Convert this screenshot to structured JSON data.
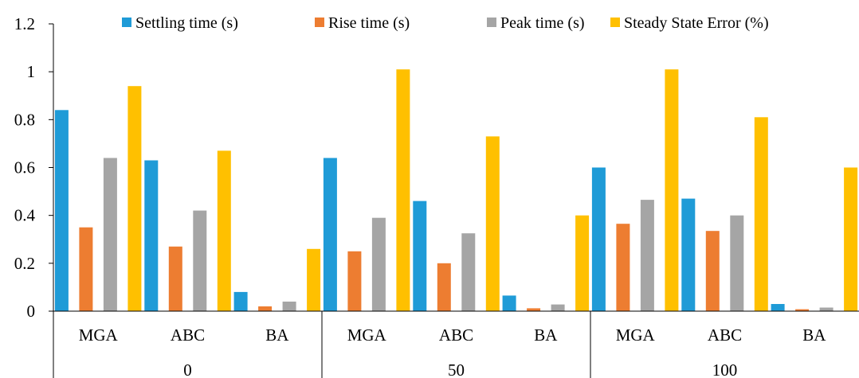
{
  "chart_data": {
    "type": "bar",
    "title": "",
    "xlabel": "",
    "ylabel": "",
    "ylim": [
      0,
      1.2
    ],
    "yticks": [
      "0",
      "0.2",
      "0.4",
      "0.6",
      "0.8",
      "1",
      "1.2"
    ],
    "grid": false,
    "legend_position": "top",
    "groups": [
      "0",
      "50",
      "100"
    ],
    "categories": [
      "MGA",
      "ABC",
      "BA",
      "MGA",
      "ABC",
      "BA",
      "MGA",
      "ABC",
      "BA"
    ],
    "series": [
      {
        "name": "Settling time (s)",
        "color": "#1f9bd7",
        "values": [
          0.84,
          0.63,
          0.08,
          0.64,
          0.46,
          0.065,
          0.6,
          0.47,
          0.03
        ]
      },
      {
        "name": "Rise time (s)",
        "color": "#ed7d31",
        "values": [
          0.35,
          0.27,
          0.02,
          0.25,
          0.2,
          0.012,
          0.365,
          0.335,
          0.008
        ]
      },
      {
        "name": "Peak time (s)",
        "color": "#a5a5a5",
        "values": [
          0.64,
          0.42,
          0.04,
          0.39,
          0.325,
          0.028,
          0.465,
          0.4,
          0.015
        ]
      },
      {
        "name": "Steady State Error (%)",
        "color": "#ffc000",
        "values": [
          0.94,
          0.67,
          0.26,
          1.01,
          0.73,
          0.4,
          1.01,
          0.81,
          0.6
        ]
      }
    ]
  }
}
